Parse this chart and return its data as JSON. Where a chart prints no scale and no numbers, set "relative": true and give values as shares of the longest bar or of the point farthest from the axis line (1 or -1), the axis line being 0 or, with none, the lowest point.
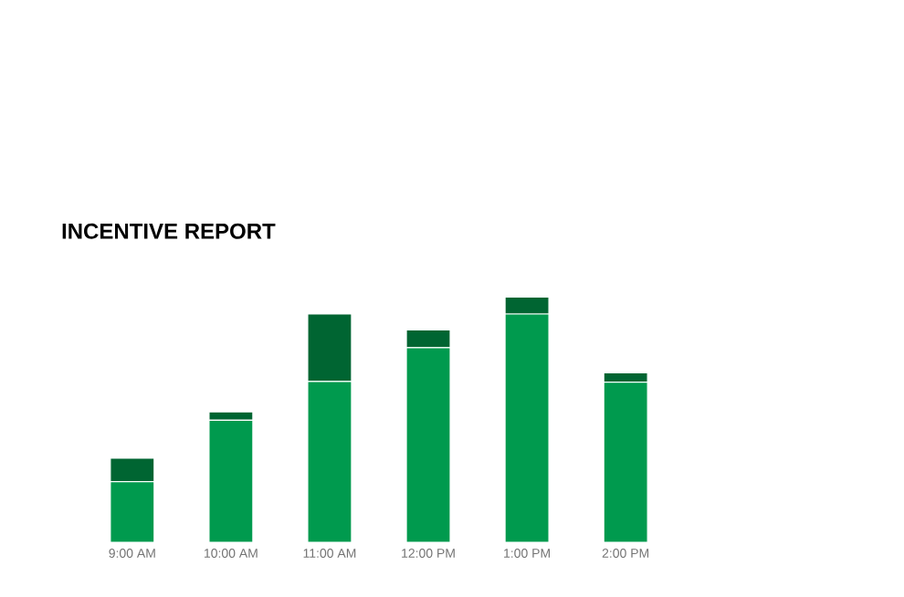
{
  "chart_data": {
    "type": "bar",
    "title": "INCENTIVE REPORT",
    "stacked": true,
    "relative": true,
    "categories": [
      "9:00 AM",
      "10:00 AM",
      "11:00 AM",
      "12:00 PM",
      "1:00 PM",
      "2:00 PM"
    ],
    "series": [
      {
        "color": "#009a4e",
        "values": [
          0.247,
          0.498,
          0.656,
          0.794,
          0.931,
          0.653
        ]
      },
      {
        "color": "#006532",
        "values": [
          0.096,
          0.034,
          0.275,
          0.072,
          0.069,
          0.038
        ]
      }
    ]
  }
}
